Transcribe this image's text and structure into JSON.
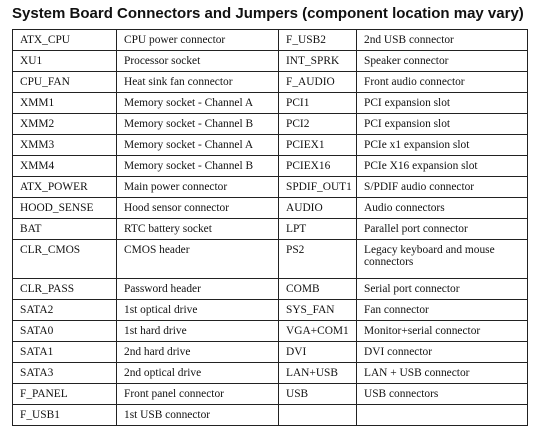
{
  "title": "System Board Connectors and Jumpers (component location may vary)",
  "rows": [
    {
      "left_code": "ATX_CPU",
      "left_desc": "CPU power connector",
      "right_code": "F_USB2",
      "right_desc": "2nd USB connector"
    },
    {
      "left_code": "XU1",
      "left_desc": "Processor socket",
      "right_code": "INT_SPRK",
      "right_desc": "Speaker connector"
    },
    {
      "left_code": "CPU_FAN",
      "left_desc": "Heat sink fan connector",
      "right_code": "F_AUDIO",
      "right_desc": "Front audio connector"
    },
    {
      "left_code": "XMM1",
      "left_desc": "Memory socket - Channel A",
      "right_code": "PCI1",
      "right_desc": "PCI expansion slot"
    },
    {
      "left_code": "XMM2",
      "left_desc": "Memory socket - Channel B",
      "right_code": "PCI2",
      "right_desc": "PCI expansion slot"
    },
    {
      "left_code": "XMM3",
      "left_desc": "Memory socket - Channel A",
      "right_code": "PCIEX1",
      "right_desc": "PCIe x1 expansion slot"
    },
    {
      "left_code": "XMM4",
      "left_desc": "Memory socket - Channel B",
      "right_code": "PCIEX16",
      "right_desc": "PCIe X16 expansion slot"
    },
    {
      "left_code": "ATX_POWER",
      "left_desc": "Main power connector",
      "right_code": "SPDIF_OUT1",
      "right_desc": "S/PDIF audio connector"
    },
    {
      "left_code": "HOOD_SENSE",
      "left_desc": "Hood sensor connector",
      "right_code": "AUDIO",
      "right_desc": "Audio connectors"
    },
    {
      "left_code": "BAT",
      "left_desc": "RTC battery socket",
      "right_code": "LPT",
      "right_desc": "Parallel port connector"
    },
    {
      "left_code": "CLR_CMOS",
      "left_desc": "CMOS header",
      "right_code": "PS2",
      "right_desc": "Legacy keyboard and mouse connectors"
    },
    {
      "left_code": "CLR_PASS",
      "left_desc": "Password header",
      "right_code": "COMB",
      "right_desc": "Serial port connector"
    },
    {
      "left_code": "SATA2",
      "left_desc": "1st optical drive",
      "right_code": "SYS_FAN",
      "right_desc": "Fan connector"
    },
    {
      "left_code": "SATA0",
      "left_desc": "1st hard drive",
      "right_code": "VGA+COM1",
      "right_desc": "Monitor+serial connector"
    },
    {
      "left_code": "SATA1",
      "left_desc": "2nd hard drive",
      "right_code": "DVI",
      "right_desc": "DVI connector"
    },
    {
      "left_code": "SATA3",
      "left_desc": "2nd optical drive",
      "right_code": "LAN+USB",
      "right_desc": "LAN + USB connector"
    },
    {
      "left_code": "F_PANEL",
      "left_desc": "Front panel connector",
      "right_code": "USB",
      "right_desc": "USB connectors"
    },
    {
      "left_code": "F_USB1",
      "left_desc": "1st USB connector",
      "right_code": "",
      "right_desc": ""
    }
  ]
}
